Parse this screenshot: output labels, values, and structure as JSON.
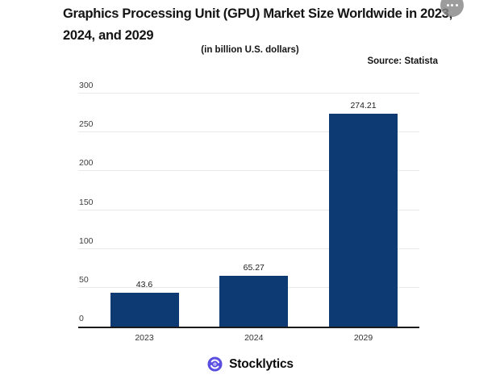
{
  "header": {
    "title_lines": {
      "0": "Graphics Processing Unit (GPU) Market Size Worldwide in 2023,",
      "1": "2024, and 2029"
    },
    "subtitle": "(in billion U.S. dollars)",
    "source": "Source: Statista",
    "menu_icon": "ellipsis-icon"
  },
  "chart_data": {
    "type": "bar",
    "title": "Graphics Processing Unit (GPU) Market Size Worldwide in 2023, 2024, and 2029",
    "subtitle": "(in billion U.S. dollars)",
    "source": "Statista",
    "categories": [
      "2023",
      "2024",
      "2029"
    ],
    "values": [
      43.6,
      65.27,
      274.21
    ],
    "value_labels": [
      "43.6",
      "65.27",
      "274.21"
    ],
    "xlabel": "",
    "ylabel": "",
    "ylim": [
      0,
      300
    ],
    "yticks": [
      0,
      50,
      100,
      150,
      200,
      250,
      300
    ],
    "grid": true,
    "legend": false,
    "legend_position": "none"
  },
  "footer": {
    "brand": "Stocklytics",
    "logo_icon": "stocklytics-swirl-logo"
  },
  "colors": {
    "bar": "#0d3a73",
    "gridline": "#e8e8e8",
    "axis": "#1a1a1a",
    "title_text": "#141414",
    "tick_text": "#3d3d3d",
    "logo_purple": "#5a4ee2",
    "menu_gray": "#868686"
  }
}
